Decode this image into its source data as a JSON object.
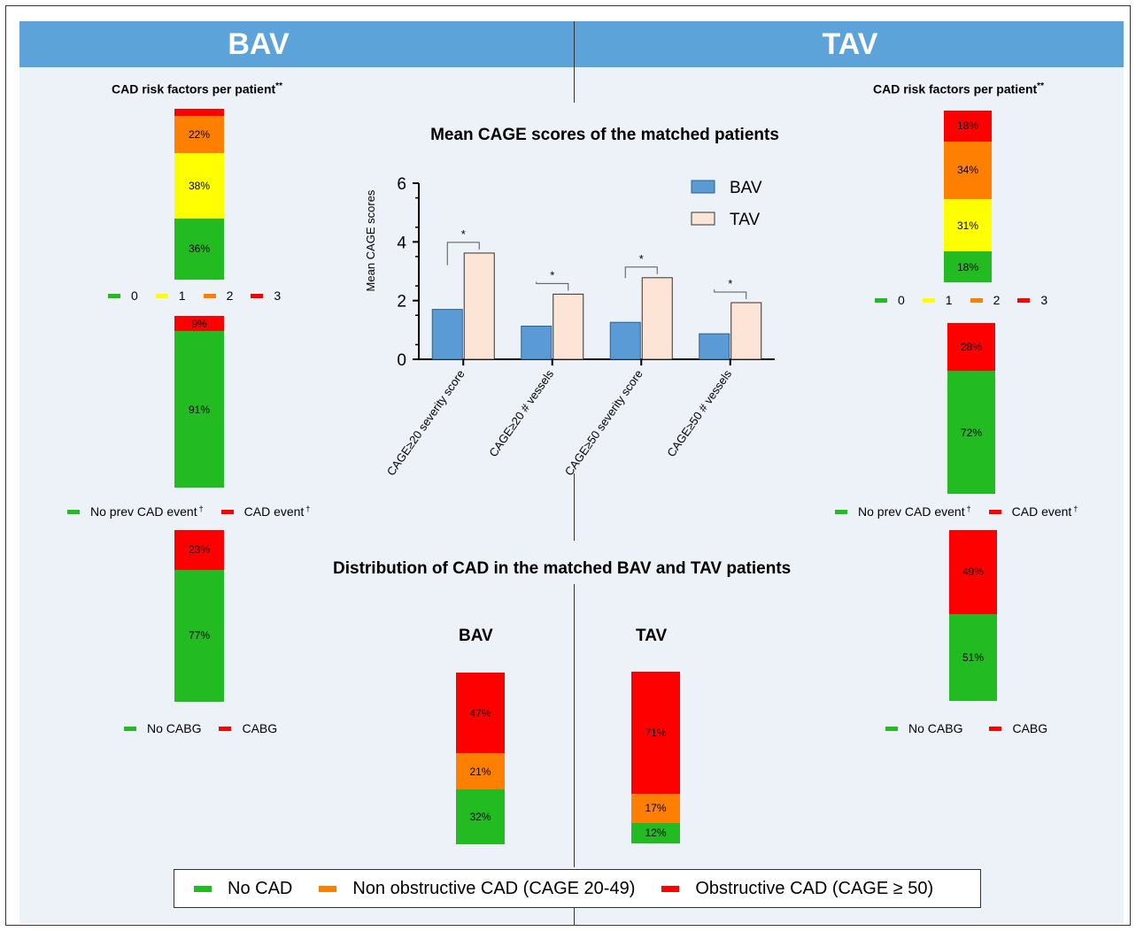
{
  "header": {
    "left": "BAV",
    "right": "TAV"
  },
  "colors": {
    "green": "#22bb22",
    "yellow": "#ffff00",
    "orange": "#ff8000",
    "red": "#ff0000",
    "bav": "#5b9bd5",
    "tav": "#fce4d6",
    "header_bg": "#5ba3d9",
    "panel_bg": "#edf2f9"
  },
  "labels": {
    "rf_title": "CAD risk factors per patient",
    "rf_mark": "**",
    "dagger": "†",
    "rf_legend": [
      "0",
      "1",
      "2",
      "3"
    ],
    "event_legend": [
      "No prev CAD event",
      "CAD event"
    ],
    "cabg_legend": [
      "No CABG",
      "CABG"
    ],
    "dist_title": "Distribution of CAD in the matched BAV and TAV patients",
    "dist_bav": "BAV",
    "dist_tav": "TAV",
    "bottom_legend": [
      "No CAD",
      "Non obstructive CAD (CAGE 20-49)",
      "Obstructive CAD (CAGE ≥ 50)"
    ]
  },
  "chart_data": [
    {
      "type": "bar",
      "title": "Mean CAGE scores of the matched patients",
      "ylabel": "Mean CAGE scores",
      "ylim": [
        0,
        6
      ],
      "yticks": [
        0,
        2,
        4,
        6
      ],
      "categories": [
        "CAGE≥20 severity score",
        "CAGE≥20 # vessels",
        "CAGE≥50 severity score",
        "CAGE≥50 # vessels"
      ],
      "series": [
        {
          "name": "BAV",
          "values": [
            1.7,
            1.13,
            1.26,
            0.87
          ]
        },
        {
          "name": "TAV",
          "values": [
            3.62,
            2.22,
            2.78,
            1.93
          ]
        }
      ],
      "significance": [
        "*",
        "*",
        "*",
        "*"
      ],
      "legend": "top-right"
    },
    {
      "type": "bar",
      "subtype": "stacked-100",
      "title": "CAD risk factors per patient",
      "group": "BAV",
      "segments": [
        {
          "name": "0",
          "value": 36,
          "label": "36%"
        },
        {
          "name": "1",
          "value": 38,
          "label": "38%"
        },
        {
          "name": "2",
          "value": 22,
          "label": "22%"
        },
        {
          "name": "3",
          "value": 4,
          "label": ""
        }
      ]
    },
    {
      "type": "bar",
      "subtype": "stacked-100",
      "title": "CAD risk factors per patient",
      "group": "TAV",
      "segments": [
        {
          "name": "0",
          "value": 18,
          "label": "18%"
        },
        {
          "name": "1",
          "value": 31,
          "label": "31%"
        },
        {
          "name": "2",
          "value": 34,
          "label": "34%"
        },
        {
          "name": "3",
          "value": 18,
          "label": "18%"
        }
      ]
    },
    {
      "type": "bar",
      "subtype": "stacked-100",
      "group": "BAV",
      "segments": [
        {
          "name": "No prev CAD event",
          "value": 91,
          "label": "91%"
        },
        {
          "name": "CAD event",
          "value": 9,
          "label": "9%"
        }
      ]
    },
    {
      "type": "bar",
      "subtype": "stacked-100",
      "group": "TAV",
      "segments": [
        {
          "name": "No prev CAD event",
          "value": 72,
          "label": "72%"
        },
        {
          "name": "CAD event",
          "value": 28,
          "label": "28%"
        }
      ]
    },
    {
      "type": "bar",
      "subtype": "stacked-100",
      "group": "BAV",
      "segments": [
        {
          "name": "No CABG",
          "value": 77,
          "label": "77%"
        },
        {
          "name": "CABG",
          "value": 23,
          "label": "23%"
        }
      ]
    },
    {
      "type": "bar",
      "subtype": "stacked-100",
      "group": "TAV",
      "segments": [
        {
          "name": "No CABG",
          "value": 51,
          "label": "51%"
        },
        {
          "name": "CABG",
          "value": 49,
          "label": "49%"
        }
      ]
    },
    {
      "type": "bar",
      "subtype": "stacked-100",
      "title": "Distribution of CAD in the matched BAV and TAV patients",
      "group": "BAV",
      "segments": [
        {
          "name": "No CAD",
          "value": 32,
          "label": "32%"
        },
        {
          "name": "Non obstructive CAD (CAGE 20-49)",
          "value": 21,
          "label": "21%"
        },
        {
          "name": "Obstructive CAD (CAGE ≥ 50)",
          "value": 47,
          "label": "47%"
        }
      ]
    },
    {
      "type": "bar",
      "subtype": "stacked-100",
      "title": "Distribution of CAD in the matched BAV and TAV patients",
      "group": "TAV",
      "segments": [
        {
          "name": "No CAD",
          "value": 12,
          "label": "12%"
        },
        {
          "name": "Non obstructive CAD (CAGE 20-49)",
          "value": 17,
          "label": "17%"
        },
        {
          "name": "Obstructive CAD (CAGE ≥ 50)",
          "value": 71,
          "label": "71%"
        }
      ]
    }
  ]
}
